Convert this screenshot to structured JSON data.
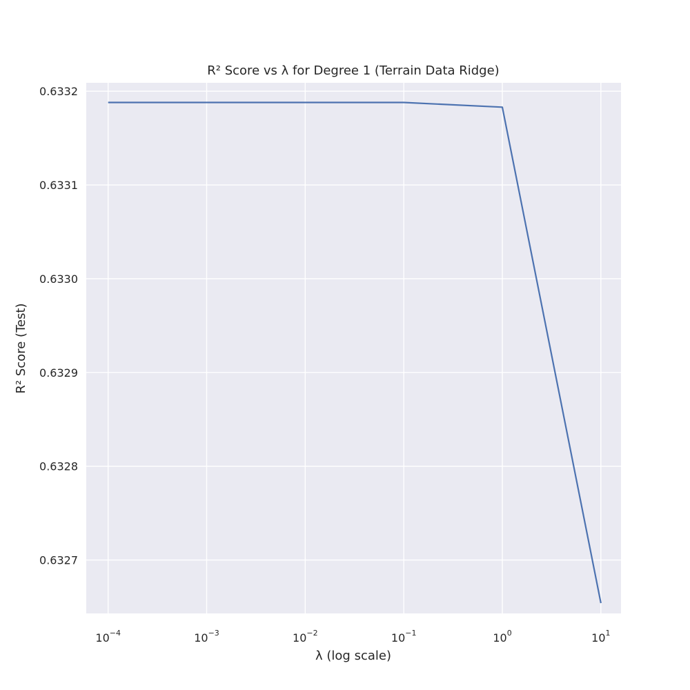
{
  "chart_data": {
    "type": "line",
    "title": "R² Score vs λ for Degree 1 (Terrain Data Ridge)",
    "xlabel": "λ (log scale)",
    "ylabel": "R² Score (Test)",
    "x_scale": "log",
    "xlim": [
      6e-05,
      16
    ],
    "ylim": [
      0.632643,
      0.633209
    ],
    "x_ticks": [
      {
        "value": 0.0001,
        "base": "10",
        "exp": "−4"
      },
      {
        "value": 0.001,
        "base": "10",
        "exp": "−3"
      },
      {
        "value": 0.01,
        "base": "10",
        "exp": "−2"
      },
      {
        "value": 0.1,
        "base": "10",
        "exp": "−1"
      },
      {
        "value": 1,
        "base": "10",
        "exp": "0"
      },
      {
        "value": 10,
        "base": "10",
        "exp": "1"
      }
    ],
    "y_ticks": [
      {
        "value": 0.6327,
        "label": "0.6327"
      },
      {
        "value": 0.6328,
        "label": "0.6328"
      },
      {
        "value": 0.6329,
        "label": "0.6329"
      },
      {
        "value": 0.633,
        "label": "0.6330"
      },
      {
        "value": 0.6331,
        "label": "0.6331"
      },
      {
        "value": 0.6332,
        "label": "0.6332"
      }
    ],
    "grid": true,
    "series": [
      {
        "x": [
          0.0001,
          0.001,
          0.01,
          0.1,
          1,
          10
        ],
        "y": [
          0.633188,
          0.633188,
          0.633188,
          0.633188,
          0.633183,
          0.632654
        ],
        "color": "#4c72b0"
      }
    ],
    "colors": {
      "plot_background": "#eaeaf2",
      "grid": "#ffffff",
      "text": "#262626"
    }
  }
}
